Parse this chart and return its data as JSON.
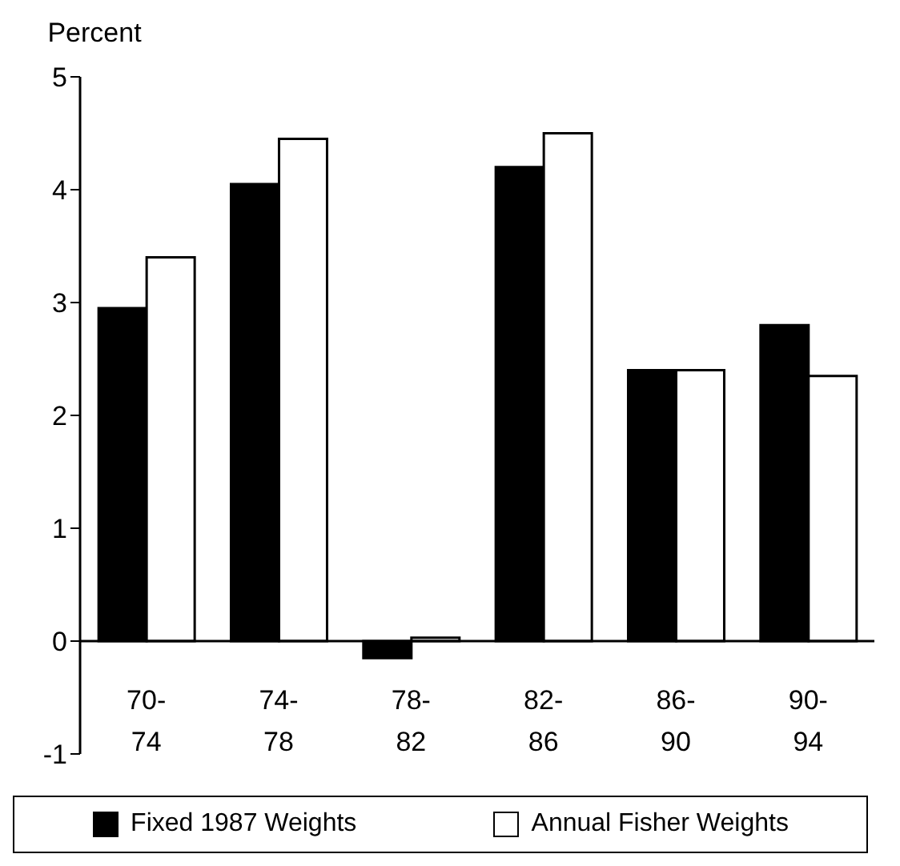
{
  "chart_data": {
    "type": "bar",
    "ylabel": "Percent",
    "categories": [
      "70-74",
      "74-78",
      "78-82",
      "82-86",
      "86-90",
      "90-94"
    ],
    "series": [
      {
        "name": "Fixed 1987 Weights",
        "color": "#000000",
        "values": [
          2.95,
          4.05,
          -0.15,
          4.2,
          2.4,
          2.8
        ]
      },
      {
        "name": "Annual Fisher Weights",
        "color": "#ffffff",
        "values": [
          3.4,
          4.45,
          0.03,
          4.5,
          2.4,
          2.35
        ]
      }
    ],
    "ylim": [
      -1,
      5
    ],
    "yticks": [
      -1,
      0,
      1,
      2,
      3,
      4,
      5
    ],
    "grid": false,
    "legend": "bottom"
  }
}
